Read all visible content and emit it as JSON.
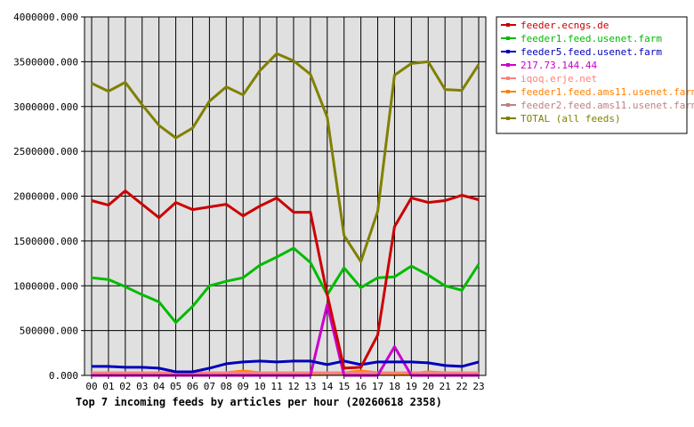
{
  "chart_data": {
    "type": "line",
    "title": "Top 7 incoming feeds by articles per hour (20260618 2358)",
    "xlabel": "",
    "ylabel": "",
    "ylim": [
      0,
      4000000
    ],
    "yticks": [
      "0.000",
      "500000.000",
      "1000000.000",
      "1500000.000",
      "2000000.000",
      "2500000.000",
      "3000000.000",
      "3500000.000",
      "4000000.000"
    ],
    "ytick_values": [
      0,
      500000,
      1000000,
      1500000,
      2000000,
      2500000,
      3000000,
      3500000,
      4000000
    ],
    "categories": [
      "00",
      "01",
      "02",
      "03",
      "04",
      "05",
      "06",
      "07",
      "08",
      "09",
      "10",
      "11",
      "12",
      "13",
      "14",
      "15",
      "16",
      "17",
      "18",
      "19",
      "20",
      "21",
      "22",
      "23"
    ],
    "grid": true,
    "legend_position": "right",
    "background_color": "#e0e0e0",
    "series": [
      {
        "name": "feeder.ecngs.de",
        "color": "#cc0000",
        "values": [
          1950000,
          1900000,
          2060000,
          1910000,
          1760000,
          1930000,
          1850000,
          1880000,
          1910000,
          1780000,
          1890000,
          1980000,
          1820000,
          1820000,
          900000,
          80000,
          90000,
          450000,
          1660000,
          1980000,
          1930000,
          1950000,
          2010000,
          1960000
        ]
      },
      {
        "name": "feeder1.feed.usenet.farm",
        "color": "#00bb00",
        "values": [
          1090000,
          1070000,
          990000,
          900000,
          820000,
          590000,
          770000,
          1000000,
          1050000,
          1090000,
          1230000,
          1320000,
          1420000,
          1260000,
          900000,
          1200000,
          980000,
          1090000,
          1100000,
          1220000,
          1120000,
          1000000,
          950000,
          1240000
        ]
      },
      {
        "name": "feeder5.feed.usenet.farm",
        "color": "#0000bb",
        "values": [
          100000,
          100000,
          90000,
          90000,
          80000,
          40000,
          40000,
          80000,
          130000,
          150000,
          160000,
          150000,
          160000,
          160000,
          120000,
          160000,
          120000,
          150000,
          150000,
          150000,
          140000,
          110000,
          100000,
          150000
        ]
      },
      {
        "name": "217.73.144.44",
        "color": "#cc00cc",
        "values": [
          0,
          0,
          0,
          0,
          0,
          0,
          0,
          0,
          0,
          0,
          0,
          0,
          0,
          0,
          790000,
          0,
          0,
          0,
          320000,
          0,
          0,
          0,
          0,
          0
        ]
      },
      {
        "name": "iqoq.erje.net",
        "color": "#ff8080",
        "values": [
          30000,
          30000,
          30000,
          30000,
          30000,
          30000,
          30000,
          30000,
          30000,
          30000,
          30000,
          30000,
          30000,
          30000,
          30000,
          30000,
          30000,
          30000,
          30000,
          30000,
          30000,
          30000,
          30000,
          30000
        ]
      },
      {
        "name": "feeder1.feed.ams11.usenet.farm",
        "color": "#ff8000",
        "values": [
          20000,
          20000,
          30000,
          20000,
          20000,
          30000,
          40000,
          20000,
          30000,
          50000,
          30000,
          20000,
          20000,
          20000,
          30000,
          30000,
          50000,
          30000,
          20000,
          20000,
          40000,
          30000,
          20000,
          20000
        ]
      },
      {
        "name": "feeder2.feed.ams11.usenet.farm",
        "color": "#c08080",
        "values": [
          20000,
          20000,
          20000,
          20000,
          20000,
          20000,
          20000,
          20000,
          20000,
          20000,
          20000,
          20000,
          20000,
          20000,
          20000,
          20000,
          20000,
          20000,
          20000,
          20000,
          20000,
          20000,
          20000,
          20000
        ]
      },
      {
        "name": "TOTAL (all feeds)",
        "color": "#808000",
        "values": [
          3260000,
          3170000,
          3270000,
          3020000,
          2790000,
          2650000,
          2760000,
          3060000,
          3220000,
          3130000,
          3400000,
          3590000,
          3510000,
          3360000,
          2880000,
          1560000,
          1270000,
          1830000,
          3350000,
          3480000,
          3500000,
          3190000,
          3180000,
          3470000
        ]
      }
    ]
  }
}
